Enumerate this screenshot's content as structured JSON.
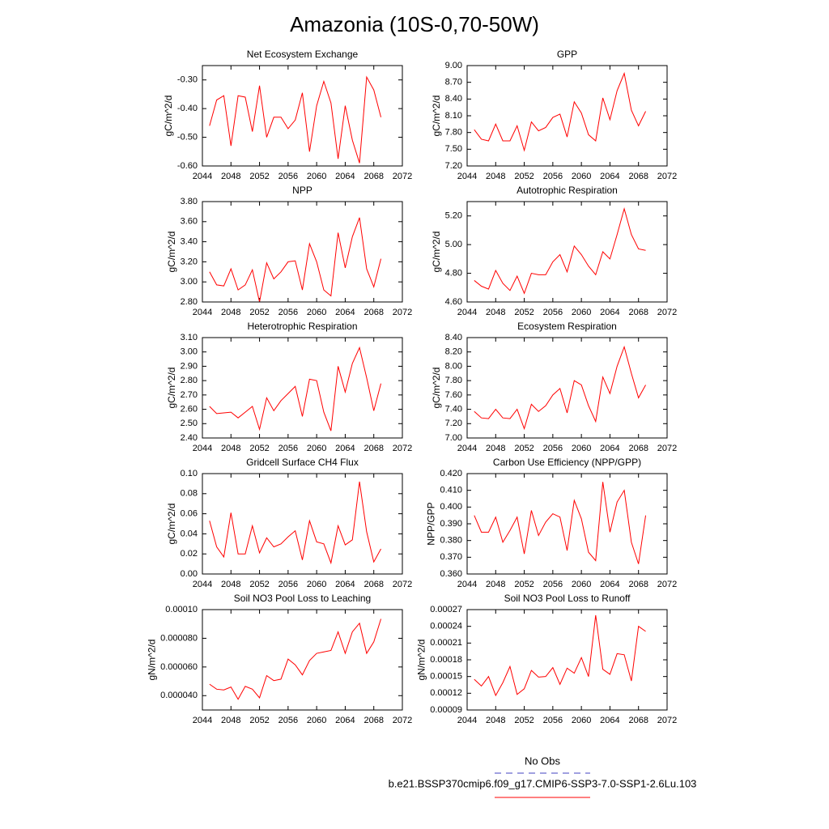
{
  "title": "Amazonia (10S-0,70-50W)",
  "legend": [
    {
      "label": "No Obs",
      "color": "#4040c0",
      "dash": true
    },
    {
      "label": "b.e21.BSSP370cmip6.f09_g17.CMIP6-SSP3-7.0-SSP1-2.6Lu.103",
      "color": "#ff0000",
      "dash": false
    }
  ],
  "chart_data": [
    {
      "type": "line",
      "title": "Net Ecosystem Exchange",
      "y_label": "gC/m^2/d",
      "x": [
        2045,
        2046,
        2047,
        2048,
        2049,
        2050,
        2051,
        2052,
        2053,
        2054,
        2055,
        2056,
        2057,
        2058,
        2059,
        2060,
        2061,
        2062,
        2063,
        2064,
        2065,
        2066,
        2067,
        2068,
        2069
      ],
      "series": [
        {
          "color": "#ff0000",
          "values": [
            -0.46,
            -0.37,
            -0.355,
            -0.53,
            -0.355,
            -0.36,
            -0.48,
            -0.32,
            -0.5,
            -0.43,
            -0.43,
            -0.47,
            -0.44,
            -0.345,
            -0.55,
            -0.39,
            -0.305,
            -0.38,
            -0.575,
            -0.39,
            -0.51,
            -0.59,
            -0.29,
            -0.335,
            -0.43
          ]
        }
      ],
      "xlim": [
        2044,
        2072
      ],
      "xticks": [
        2044,
        2048,
        2052,
        2056,
        2060,
        2064,
        2068,
        2072
      ],
      "ylim": [
        -0.6,
        -0.25
      ],
      "yticks": [
        {
          "value": -0.6,
          "label": "-0.60"
        },
        {
          "value": -0.5,
          "label": "-0.50"
        },
        {
          "value": -0.4,
          "label": "-0.40"
        },
        {
          "value": -0.3,
          "label": "-0.30"
        }
      ]
    },
    {
      "type": "line",
      "title": "GPP",
      "y_label": "gC/m^2/d",
      "x": [
        2045,
        2046,
        2047,
        2048,
        2049,
        2050,
        2051,
        2052,
        2053,
        2054,
        2055,
        2056,
        2057,
        2058,
        2059,
        2060,
        2061,
        2062,
        2063,
        2064,
        2065,
        2066,
        2067,
        2068,
        2069
      ],
      "series": [
        {
          "color": "#ff0000",
          "values": [
            7.85,
            7.68,
            7.65,
            7.95,
            7.65,
            7.65,
            7.92,
            7.48,
            7.99,
            7.83,
            7.89,
            8.07,
            8.13,
            7.72,
            8.35,
            8.15,
            7.76,
            7.65,
            8.42,
            8.03,
            8.55,
            8.86,
            8.2,
            7.92,
            8.18
          ]
        }
      ],
      "xlim": [
        2044,
        2072
      ],
      "xticks": [
        2044,
        2048,
        2052,
        2056,
        2060,
        2064,
        2068,
        2072
      ],
      "ylim": [
        7.2,
        9.0
      ],
      "yticks": [
        {
          "value": 7.2,
          "label": "7.20"
        },
        {
          "value": 7.5,
          "label": "7.50"
        },
        {
          "value": 7.8,
          "label": "7.80"
        },
        {
          "value": 8.1,
          "label": "8.10"
        },
        {
          "value": 8.4,
          "label": "8.40"
        },
        {
          "value": 8.7,
          "label": "8.70"
        },
        {
          "value": 9.0,
          "label": "9.00"
        }
      ]
    },
    {
      "type": "line",
      "title": "NPP",
      "y_label": "gC/m^2/d",
      "x": [
        2045,
        2046,
        2047,
        2048,
        2049,
        2050,
        2051,
        2052,
        2053,
        2054,
        2055,
        2056,
        2057,
        2058,
        2059,
        2060,
        2061,
        2062,
        2063,
        2064,
        2065,
        2066,
        2067,
        2068,
        2069
      ],
      "series": [
        {
          "color": "#ff0000",
          "values": [
            3.1,
            2.97,
            2.96,
            3.13,
            2.92,
            2.97,
            3.12,
            2.8,
            3.19,
            3.03,
            3.1,
            3.2,
            3.21,
            2.92,
            3.38,
            3.2,
            2.92,
            2.86,
            3.49,
            3.14,
            3.45,
            3.64,
            3.13,
            2.95,
            3.23
          ]
        }
      ],
      "xlim": [
        2044,
        2072
      ],
      "xticks": [
        2044,
        2048,
        2052,
        2056,
        2060,
        2064,
        2068,
        2072
      ],
      "ylim": [
        2.8,
        3.8
      ],
      "yticks": [
        {
          "value": 2.8,
          "label": "2.80"
        },
        {
          "value": 3.0,
          "label": "3.00"
        },
        {
          "value": 3.2,
          "label": "3.20"
        },
        {
          "value": 3.4,
          "label": "3.40"
        },
        {
          "value": 3.6,
          "label": "3.60"
        },
        {
          "value": 3.8,
          "label": "3.80"
        }
      ]
    },
    {
      "type": "line",
      "title": "Autotrophic Respiration",
      "y_label": "gC/m^2/d",
      "x": [
        2045,
        2046,
        2047,
        2048,
        2049,
        2050,
        2051,
        2052,
        2053,
        2054,
        2055,
        2056,
        2057,
        2058,
        2059,
        2060,
        2061,
        2062,
        2063,
        2064,
        2065,
        2066,
        2067,
        2068,
        2069
      ],
      "series": [
        {
          "color": "#ff0000",
          "values": [
            4.75,
            4.71,
            4.69,
            4.82,
            4.73,
            4.68,
            4.78,
            4.66,
            4.8,
            4.79,
            4.79,
            4.88,
            4.93,
            4.81,
            4.99,
            4.93,
            4.85,
            4.79,
            4.95,
            4.9,
            5.07,
            5.25,
            5.07,
            4.97,
            4.96
          ]
        }
      ],
      "xlim": [
        2044,
        2072
      ],
      "xticks": [
        2044,
        2048,
        2052,
        2056,
        2060,
        2064,
        2068,
        2072
      ],
      "ylim": [
        4.6,
        5.3
      ],
      "yticks": [
        {
          "value": 4.6,
          "label": "4.60"
        },
        {
          "value": 4.8,
          "label": "4.80"
        },
        {
          "value": 5.0,
          "label": "5.00"
        },
        {
          "value": 5.2,
          "label": "5.20"
        }
      ]
    },
    {
      "type": "line",
      "title": "Heterotrophic Respiration",
      "y_label": "gC/m^2/d",
      "x": [
        2045,
        2046,
        2047,
        2048,
        2049,
        2050,
        2051,
        2052,
        2053,
        2054,
        2055,
        2056,
        2057,
        2058,
        2059,
        2060,
        2061,
        2062,
        2063,
        2064,
        2065,
        2066,
        2067,
        2068,
        2069
      ],
      "series": [
        {
          "color": "#ff0000",
          "values": [
            2.62,
            2.57,
            2.575,
            2.58,
            2.54,
            2.58,
            2.62,
            2.46,
            2.68,
            2.59,
            2.66,
            2.71,
            2.76,
            2.55,
            2.81,
            2.8,
            2.58,
            2.45,
            2.9,
            2.72,
            2.92,
            3.03,
            2.82,
            2.59,
            2.78
          ]
        }
      ],
      "xlim": [
        2044,
        2072
      ],
      "xticks": [
        2044,
        2048,
        2052,
        2056,
        2060,
        2064,
        2068,
        2072
      ],
      "ylim": [
        2.4,
        3.1
      ],
      "yticks": [
        {
          "value": 2.4,
          "label": "2.40"
        },
        {
          "value": 2.5,
          "label": "2.50"
        },
        {
          "value": 2.6,
          "label": "2.60"
        },
        {
          "value": 2.7,
          "label": "2.70"
        },
        {
          "value": 2.8,
          "label": "2.80"
        },
        {
          "value": 2.9,
          "label": "2.90"
        },
        {
          "value": 3.0,
          "label": "3.00"
        },
        {
          "value": 3.1,
          "label": "3.10"
        }
      ]
    },
    {
      "type": "line",
      "title": "Ecosystem Respiration",
      "y_label": "gC/m^2/d",
      "x": [
        2045,
        2046,
        2047,
        2048,
        2049,
        2050,
        2051,
        2052,
        2053,
        2054,
        2055,
        2056,
        2057,
        2058,
        2059,
        2060,
        2061,
        2062,
        2063,
        2064,
        2065,
        2066,
        2067,
        2068,
        2069
      ],
      "series": [
        {
          "color": "#ff0000",
          "values": [
            7.37,
            7.28,
            7.27,
            7.4,
            7.28,
            7.27,
            7.4,
            7.13,
            7.47,
            7.37,
            7.45,
            7.6,
            7.69,
            7.35,
            7.8,
            7.74,
            7.45,
            7.23,
            7.85,
            7.62,
            8.0,
            8.27,
            7.9,
            7.56,
            7.74
          ]
        }
      ],
      "xlim": [
        2044,
        2072
      ],
      "xticks": [
        2044,
        2048,
        2052,
        2056,
        2060,
        2064,
        2068,
        2072
      ],
      "ylim": [
        7.0,
        8.4
      ],
      "yticks": [
        {
          "value": 7.0,
          "label": "7.00"
        },
        {
          "value": 7.2,
          "label": "7.20"
        },
        {
          "value": 7.4,
          "label": "7.40"
        },
        {
          "value": 7.6,
          "label": "7.60"
        },
        {
          "value": 7.8,
          "label": "7.80"
        },
        {
          "value": 8.0,
          "label": "8.00"
        },
        {
          "value": 8.2,
          "label": "8.20"
        },
        {
          "value": 8.4,
          "label": "8.40"
        }
      ]
    },
    {
      "type": "line",
      "title": "Gridcell Surface CH4 Flux",
      "y_label": "gC/m^2/d",
      "x": [
        2045,
        2046,
        2047,
        2048,
        2049,
        2050,
        2051,
        2052,
        2053,
        2054,
        2055,
        2056,
        2057,
        2058,
        2059,
        2060,
        2061,
        2062,
        2063,
        2064,
        2065,
        2066,
        2067,
        2068,
        2069
      ],
      "series": [
        {
          "color": "#ff0000",
          "values": [
            0.053,
            0.027,
            0.017,
            0.061,
            0.02,
            0.02,
            0.048,
            0.021,
            0.036,
            0.027,
            0.03,
            0.037,
            0.043,
            0.014,
            0.053,
            0.032,
            0.03,
            0.011,
            0.048,
            0.029,
            0.034,
            0.092,
            0.042,
            0.012,
            0.025
          ]
        }
      ],
      "xlim": [
        2044,
        2072
      ],
      "xticks": [
        2044,
        2048,
        2052,
        2056,
        2060,
        2064,
        2068,
        2072
      ],
      "ylim": [
        0.0,
        0.1
      ],
      "yticks": [
        {
          "value": 0.0,
          "label": "0.00"
        },
        {
          "value": 0.02,
          "label": "0.02"
        },
        {
          "value": 0.04,
          "label": "0.04"
        },
        {
          "value": 0.06,
          "label": "0.06"
        },
        {
          "value": 0.08,
          "label": "0.08"
        },
        {
          "value": 0.1,
          "label": "0.10"
        }
      ]
    },
    {
      "type": "line",
      "title": "Carbon Use Efficiency (NPP/GPP)",
      "y_label": "NPP/GPP",
      "x": [
        2045,
        2046,
        2047,
        2048,
        2049,
        2050,
        2051,
        2052,
        2053,
        2054,
        2055,
        2056,
        2057,
        2058,
        2059,
        2060,
        2061,
        2062,
        2063,
        2064,
        2065,
        2066,
        2067,
        2068,
        2069
      ],
      "series": [
        {
          "color": "#ff0000",
          "values": [
            0.395,
            0.385,
            0.385,
            0.394,
            0.379,
            0.386,
            0.394,
            0.372,
            0.398,
            0.383,
            0.391,
            0.396,
            0.394,
            0.374,
            0.404,
            0.393,
            0.373,
            0.368,
            0.415,
            0.385,
            0.403,
            0.41,
            0.379,
            0.366,
            0.395
          ]
        }
      ],
      "xlim": [
        2044,
        2072
      ],
      "xticks": [
        2044,
        2048,
        2052,
        2056,
        2060,
        2064,
        2068,
        2072
      ],
      "ylim": [
        0.36,
        0.42
      ],
      "yticks": [
        {
          "value": 0.36,
          "label": "0.360"
        },
        {
          "value": 0.37,
          "label": "0.370"
        },
        {
          "value": 0.38,
          "label": "0.380"
        },
        {
          "value": 0.39,
          "label": "0.390"
        },
        {
          "value": 0.4,
          "label": "0.400"
        },
        {
          "value": 0.41,
          "label": "0.410"
        },
        {
          "value": 0.42,
          "label": "0.420"
        }
      ]
    },
    {
      "type": "line",
      "title": "Soil NO3 Pool Loss to Leaching",
      "y_label": "gN/m^2/d",
      "x": [
        2045,
        2046,
        2047,
        2048,
        2049,
        2050,
        2051,
        2052,
        2053,
        2054,
        2055,
        2056,
        2057,
        2058,
        2059,
        2060,
        2061,
        2062,
        2063,
        2064,
        2065,
        2066,
        2067,
        2068,
        2069
      ],
      "series": [
        {
          "color": "#ff0000",
          "values": [
            4.8e-05,
            4.45e-05,
            4.4e-05,
            4.6e-05,
            3.75e-05,
            4.65e-05,
            4.45e-05,
            3.85e-05,
            5.4e-05,
            5.05e-05,
            5.15e-05,
            6.55e-05,
            6.15e-05,
            5.45e-05,
            6.45e-05,
            6.95e-05,
            7.05e-05,
            7.15e-05,
            8.45e-05,
            6.95e-05,
            8.45e-05,
            9.05e-05,
            6.95e-05,
            7.75e-05,
            9.35e-05
          ]
        }
      ],
      "xlim": [
        2044,
        2072
      ],
      "xticks": [
        2044,
        2048,
        2052,
        2056,
        2060,
        2064,
        2068,
        2072
      ],
      "ylim": [
        3e-05,
        0.0001
      ],
      "yticks": [
        {
          "value": 4e-05,
          "label": "0.000040"
        },
        {
          "value": 6e-05,
          "label": "0.000060"
        },
        {
          "value": 8e-05,
          "label": "0.000080"
        },
        {
          "value": 0.0001,
          "label": "0.00010"
        }
      ]
    },
    {
      "type": "line",
      "title": "Soil NO3 Pool Loss to Runoff",
      "y_label": "gN/m^2/d",
      "x": [
        2045,
        2046,
        2047,
        2048,
        2049,
        2050,
        2051,
        2052,
        2053,
        2054,
        2055,
        2056,
        2057,
        2058,
        2059,
        2060,
        2061,
        2062,
        2063,
        2064,
        2065,
        2066,
        2067,
        2068,
        2069
      ],
      "series": [
        {
          "color": "#ff0000",
          "values": [
            0.000145,
            0.000133,
            0.00015,
            0.000116,
            0.000139,
            0.000168,
            0.000118,
            0.000128,
            0.000161,
            0.000149,
            0.00015,
            0.000166,
            0.000136,
            0.000165,
            0.000156,
            0.000184,
            0.00015,
            0.00026,
            0.000163,
            0.000154,
            0.000191,
            0.000189,
            0.000142,
            0.00024,
            0.000231
          ]
        }
      ],
      "xlim": [
        2044,
        2072
      ],
      "xticks": [
        2044,
        2048,
        2052,
        2056,
        2060,
        2064,
        2068,
        2072
      ],
      "ylim": [
        9e-05,
        0.00027
      ],
      "yticks": [
        {
          "value": 9e-05,
          "label": "0.00009"
        },
        {
          "value": 0.00012,
          "label": "0.00012"
        },
        {
          "value": 0.00015,
          "label": "0.00015"
        },
        {
          "value": 0.00018,
          "label": "0.00018"
        },
        {
          "value": 0.00021,
          "label": "0.00021"
        },
        {
          "value": 0.00024,
          "label": "0.00024"
        },
        {
          "value": 0.00027,
          "label": "0.00027"
        }
      ]
    }
  ]
}
